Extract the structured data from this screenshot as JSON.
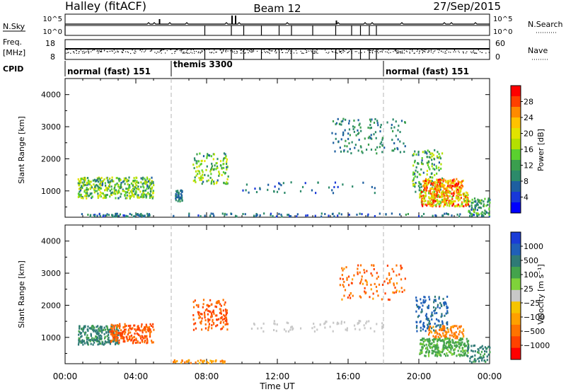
{
  "header": {
    "title_left": "Halley (fitACF)",
    "title_center": "Beam 12",
    "title_right": "27/Sep/2015"
  },
  "strips": {
    "nsky_label": "N.Sky",
    "nsky_ticks": [
      "10^5",
      "10^0"
    ],
    "nsearch_label": "N.Search",
    "nsearch_ticks": [
      "10^5",
      "10^0"
    ],
    "freq_label": "Freq.",
    "freq_unit": "[MHz]",
    "freq_ticks": [
      "18",
      "8"
    ],
    "nave_label": "Nave",
    "nave_ticks": [
      "60",
      "0"
    ],
    "cpid_label": "CPID",
    "cpid_segments": [
      {
        "label": "normal (fast) 151",
        "start_h": 0,
        "end_h": 6
      },
      {
        "label": "themis 3300",
        "start_h": 6,
        "end_h": 18
      },
      {
        "label": "normal (fast) 151",
        "start_h": 18,
        "end_h": 24
      }
    ],
    "nsearch_spikes_h": [
      0,
      7.9,
      9.4,
      10.1,
      11.1,
      12.1,
      12.8,
      14.0,
      15.3,
      16.2,
      16.7,
      17.2,
      17.6
    ],
    "freq_spikes_h": [
      0,
      7.9,
      9.4,
      10.1,
      11.1,
      12.1,
      12.8,
      14.0,
      15.3,
      16.2,
      16.7,
      17.2,
      17.6
    ]
  },
  "chart_data": [
    {
      "type": "heatmap",
      "panel": "power",
      "ylabel": "Slant Range [km]",
      "xlabel": "Time UT",
      "xlim": [
        0,
        24
      ],
      "ylim": [
        180,
        4500
      ],
      "xticks": [
        "00:00",
        "04:00",
        "08:00",
        "12:00",
        "16:00",
        "20:00",
        "00:00"
      ],
      "yticks": [
        1000,
        2000,
        3000,
        4000
      ],
      "colorbar": {
        "label": "Power [dB]",
        "ticks": [
          "28",
          "24",
          "20",
          "16",
          "12",
          "8",
          "4"
        ],
        "colors": [
          "#ff0000",
          "#ff4000",
          "#ff8a00",
          "#ffc200",
          "#e2e300",
          "#b4e000",
          "#5ad12f",
          "#3a9e4e",
          "#2c8a6a",
          "#1e5fa0",
          "#1838d8",
          "#0000ff"
        ]
      },
      "mode_change_times_h": [
        6,
        18
      ],
      "scatter_clusters": [
        {
          "t": [
            0.7,
            5.0
          ],
          "r": [
            800,
            1450
          ],
          "pw": [
            6,
            20
          ],
          "n": 420
        },
        {
          "t": [
            0.9,
            4.8
          ],
          "r": [
            230,
            320
          ],
          "pw": [
            3,
            10
          ],
          "n": 60
        },
        {
          "t": [
            6.2,
            6.6
          ],
          "r": [
            700,
            1050
          ],
          "pw": [
            4,
            10
          ],
          "n": 40
        },
        {
          "t": [
            7.2,
            9.2
          ],
          "r": [
            1250,
            2200
          ],
          "pw": [
            6,
            20
          ],
          "n": 120
        },
        {
          "t": [
            6.0,
            24.0
          ],
          "r": [
            230,
            330
          ],
          "pw": [
            3,
            10
          ],
          "n": 90
        },
        {
          "t": [
            10.0,
            17.5
          ],
          "r": [
            950,
            1300
          ],
          "pw": [
            3,
            9
          ],
          "n": 40
        },
        {
          "t": [
            15.0,
            19.2
          ],
          "r": [
            2200,
            3300
          ],
          "pw": [
            4,
            12
          ],
          "n": 130
        },
        {
          "t": [
            19.6,
            21.3
          ],
          "r": [
            1000,
            2300
          ],
          "pw": [
            6,
            18
          ],
          "n": 140
        },
        {
          "t": [
            20.2,
            22.5
          ],
          "r": [
            1000,
            1400
          ],
          "pw": [
            18,
            30
          ],
          "n": 170
        },
        {
          "t": [
            20.0,
            22.8
          ],
          "r": [
            550,
            1000
          ],
          "pw": [
            14,
            30
          ],
          "n": 260
        },
        {
          "t": [
            22.7,
            24.0
          ],
          "r": [
            250,
            800
          ],
          "pw": [
            4,
            16
          ],
          "n": 80
        }
      ]
    },
    {
      "type": "heatmap",
      "panel": "velocity",
      "ylabel": "Slant Range [km]",
      "xlabel": "Time UT",
      "xlim": [
        0,
        24
      ],
      "ylim": [
        180,
        4500
      ],
      "xticks": [
        "00:00",
        "04:00",
        "08:00",
        "12:00",
        "16:00",
        "20:00",
        "00:00"
      ],
      "yticks": [
        1000,
        2000,
        3000,
        4000
      ],
      "colorbar": {
        "label": "Velocity [m s⁻¹]",
        "ticks": [
          "1000",
          "500",
          "100",
          "25",
          "−25",
          "−100",
          "−500",
          "−1000"
        ],
        "colors": [
          "#1a3cd6",
          "#1f5fb8",
          "#2f7a76",
          "#44a34c",
          "#7fd23a",
          "#c8c8c8",
          "#f5c400",
          "#ffa000",
          "#ff7300",
          "#ff4200",
          "#ff0000"
        ]
      },
      "mode_change_times_h": [
        6,
        18
      ],
      "scatter_clusters": [
        {
          "t": [
            0.7,
            3.0
          ],
          "r": [
            800,
            1400
          ],
          "v": [
            60,
            200
          ],
          "n": 220
        },
        {
          "t": [
            2.5,
            5.0
          ],
          "r": [
            850,
            1450
          ],
          "v": [
            -600,
            -150
          ],
          "n": 200
        },
        {
          "t": [
            7.2,
            9.2
          ],
          "r": [
            1250,
            2200
          ],
          "v": [
            -600,
            -200
          ],
          "n": 130
        },
        {
          "t": [
            6.0,
            9.0
          ],
          "r": [
            230,
            320
          ],
          "v": [
            -200,
            -40
          ],
          "n": 40
        },
        {
          "t": [
            10.5,
            18.0
          ],
          "r": [
            1200,
            1550
          ],
          "v": [
            -10,
            10
          ],
          "n": 70
        },
        {
          "t": [
            15.5,
            19.2
          ],
          "r": [
            2200,
            3300
          ],
          "v": [
            -600,
            -100
          ],
          "n": 110
        },
        {
          "t": [
            19.8,
            21.6
          ],
          "r": [
            1200,
            2300
          ],
          "v": [
            150,
            600
          ],
          "n": 130
        },
        {
          "t": [
            20.5,
            22.5
          ],
          "r": [
            1000,
            1400
          ],
          "v": [
            -300,
            -80
          ],
          "n": 90
        },
        {
          "t": [
            20.0,
            22.8
          ],
          "r": [
            450,
            1000
          ],
          "v": [
            40,
            90
          ],
          "n": 250
        },
        {
          "t": [
            22.7,
            24.0
          ],
          "r": [
            250,
            800
          ],
          "v": [
            50,
            300
          ],
          "n": 60
        }
      ]
    }
  ]
}
